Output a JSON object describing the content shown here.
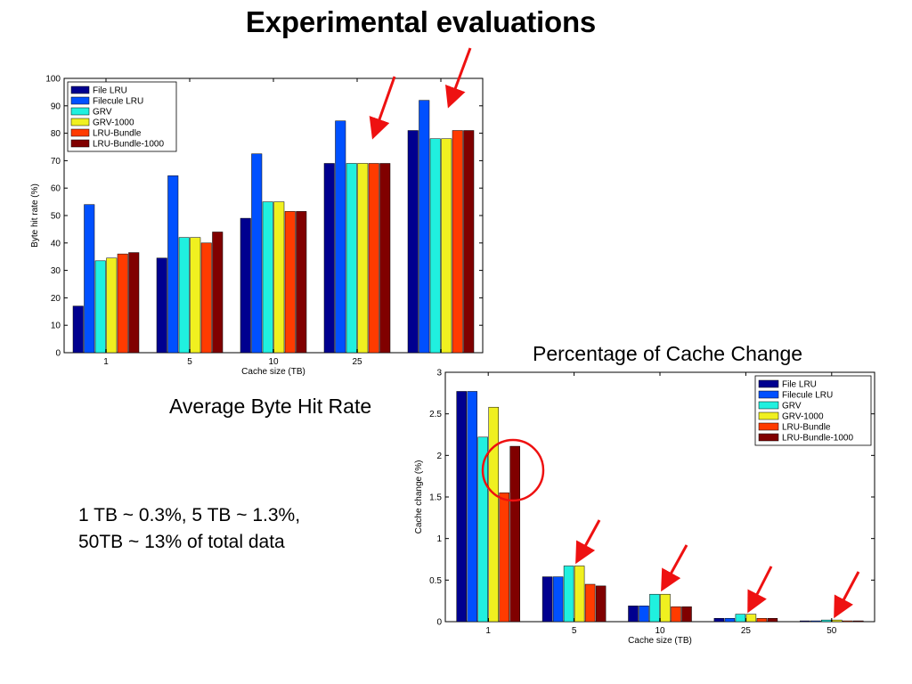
{
  "slide": {
    "title": "Experimental evaluations",
    "caption_left": "Average Byte Hit Rate",
    "caption_right": "Percentage of Cache Change",
    "note_lines": [
      "1 TB ~ 0.3%, 5 TB ~ 1.3%,",
      "50TB ~ 13% of total data"
    ]
  },
  "series_colors": [
    "#00008f",
    "#0050ff",
    "#20f0df",
    "#f0f020",
    "#ff3b00",
    "#800000"
  ],
  "chart_data": [
    {
      "type": "bar",
      "categories": [
        "1",
        "5",
        "10",
        "25",
        ""
      ],
      "series": [
        {
          "name": "File LRU",
          "values": [
            17,
            34.5,
            49,
            69,
            81
          ]
        },
        {
          "name": "Filecule LRU",
          "values": [
            54,
            64.5,
            72.5,
            84.5,
            92
          ]
        },
        {
          "name": "GRV",
          "values": [
            33.5,
            42,
            55,
            69,
            78
          ]
        },
        {
          "name": "GRV-1000",
          "values": [
            34.5,
            42,
            55,
            69,
            78
          ]
        },
        {
          "name": "LRU-Bundle",
          "values": [
            36,
            40,
            51.5,
            69,
            81
          ]
        },
        {
          "name": "LRU-Bundle-1000",
          "values": [
            36.5,
            44,
            51.5,
            69,
            81
          ]
        }
      ],
      "xlabel": "Cache size (TB)",
      "ylabel": "Byte hit rate (%)",
      "ylim": [
        0,
        100
      ],
      "yticks": [
        0,
        10,
        20,
        30,
        40,
        50,
        60,
        70,
        80,
        90,
        100
      ],
      "legend": "top-left",
      "grid": false
    },
    {
      "type": "bar",
      "categories": [
        "1",
        "5",
        "10",
        "25",
        "50"
      ],
      "series": [
        {
          "name": "File LRU",
          "values": [
            2.77,
            0.54,
            0.19,
            0.04,
            0.01
          ]
        },
        {
          "name": "Filecule LRU",
          "values": [
            2.77,
            0.54,
            0.19,
            0.04,
            0.01
          ]
        },
        {
          "name": "GRV",
          "values": [
            2.22,
            0.67,
            0.33,
            0.09,
            0.02
          ]
        },
        {
          "name": "GRV-1000",
          "values": [
            2.58,
            0.67,
            0.33,
            0.09,
            0.02
          ]
        },
        {
          "name": "LRU-Bundle",
          "values": [
            1.55,
            0.45,
            0.18,
            0.04,
            0.01
          ]
        },
        {
          "name": "LRU-Bundle-1000",
          "values": [
            2.11,
            0.43,
            0.18,
            0.04,
            0.01
          ]
        }
      ],
      "xlabel": "Cache size (TB)",
      "ylabel": "Cache change (%)",
      "ylim": [
        0,
        3
      ],
      "yticks": [
        0,
        0.5,
        1,
        1.5,
        2,
        2.5,
        3
      ],
      "legend": "top-right",
      "grid": false
    }
  ]
}
